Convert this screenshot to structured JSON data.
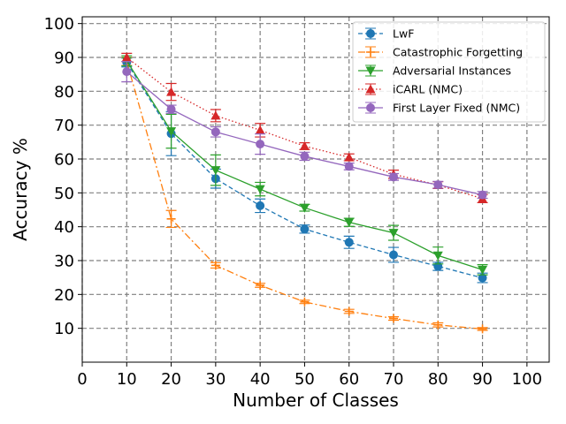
{
  "chart_data": {
    "type": "line",
    "xlabel": "Number of Classes",
    "ylabel": "Accuracy %",
    "xlim": [
      0,
      105
    ],
    "ylim": [
      0,
      102
    ],
    "xticks": [
      0,
      10,
      20,
      30,
      40,
      50,
      60,
      70,
      80,
      90,
      100
    ],
    "yticks": [
      10,
      20,
      30,
      40,
      50,
      60,
      70,
      80,
      90,
      100
    ],
    "grid": true,
    "legend_position": "top-right",
    "x": [
      10,
      20,
      30,
      40,
      50,
      60,
      70,
      80,
      90
    ],
    "series": [
      {
        "name": "LwF",
        "color": "#1f77b4",
        "line_style": "dashed",
        "marker": "circle",
        "values": [
          88.5,
          67.5,
          54.2,
          46.2,
          39.3,
          35.4,
          31.7,
          28.3,
          24.9
        ],
        "errors": [
          1.3,
          6.5,
          2.8,
          2.0,
          1.2,
          1.8,
          2.2,
          1.2,
          1.4
        ]
      },
      {
        "name": "Catastrophic Forgetting",
        "color": "#ff7f0e",
        "line_style": "dashdot",
        "marker": "cross",
        "values": [
          88.8,
          42.3,
          28.6,
          22.7,
          17.8,
          15.0,
          12.9,
          11.0,
          9.8
        ],
        "errors": [
          1.2,
          2.5,
          0.8,
          0.6,
          0.5,
          0.6,
          0.5,
          0.6,
          0.4
        ]
      },
      {
        "name": "Adversarial Instances",
        "color": "#2ca02c",
        "line_style": "solid",
        "marker": "triangle-down",
        "values": [
          89.0,
          68.2,
          56.7,
          51.1,
          45.6,
          41.3,
          38.2,
          31.5,
          27.3
        ],
        "errors": [
          1.5,
          5.0,
          4.5,
          2.0,
          1.0,
          1.2,
          2.2,
          2.5,
          1.5
        ]
      },
      {
        "name": "iCARL (NMC)",
        "color": "#d62728",
        "line_style": "dotted",
        "marker": "triangle-up",
        "values": [
          90.0,
          79.8,
          72.8,
          68.5,
          63.8,
          60.5,
          55.5,
          52.3,
          48.3
        ],
        "errors": [
          1.2,
          2.5,
          1.8,
          2.0,
          1.0,
          1.0,
          1.2,
          1.0,
          1.2
        ]
      },
      {
        "name": "First Layer Fixed (NMC)",
        "color": "#9467bd",
        "line_style": "solid",
        "marker": "circle",
        "values": [
          85.8,
          74.7,
          68.0,
          64.4,
          60.8,
          57.8,
          54.7,
          52.4,
          49.4
        ],
        "errors": [
          3.0,
          1.2,
          1.5,
          3.0,
          1.2,
          1.0,
          1.0,
          1.0,
          1.0
        ]
      }
    ]
  }
}
